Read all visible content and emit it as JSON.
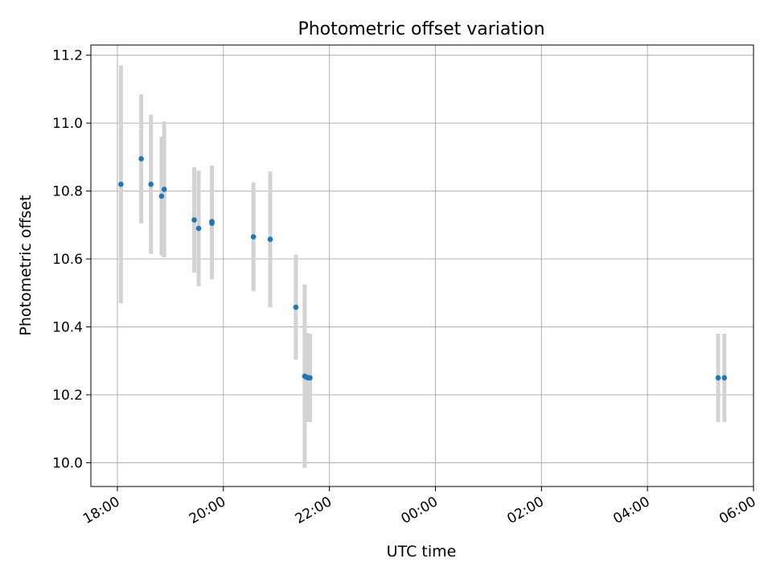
{
  "chart_data": {
    "type": "scatter",
    "title": "Photometric offset variation",
    "xlabel": "UTC time",
    "ylabel": "Photometric offset",
    "x_axis_kind": "time (UTC)",
    "xlim": [
      "2021-01-01T17:30",
      "2021-01-02T06:00"
    ],
    "ylim": [
      9.93,
      11.23
    ],
    "x_ticks": [
      {
        "t": "2021-01-01T18:00",
        "label": "18:00"
      },
      {
        "t": "2021-01-01T20:00",
        "label": "20:00"
      },
      {
        "t": "2021-01-01T22:00",
        "label": "22:00"
      },
      {
        "t": "2021-01-02T00:00",
        "label": "00:00"
      },
      {
        "t": "2021-01-02T02:00",
        "label": "02:00"
      },
      {
        "t": "2021-01-02T04:00",
        "label": "04:00"
      },
      {
        "t": "2021-01-02T06:00",
        "label": "06:00"
      }
    ],
    "y_ticks": [
      {
        "v": 10.0,
        "label": "10.0"
      },
      {
        "v": 10.2,
        "label": "10.2"
      },
      {
        "v": 10.4,
        "label": "10.4"
      },
      {
        "v": 10.6,
        "label": "10.6"
      },
      {
        "v": 10.8,
        "label": "10.8"
      },
      {
        "v": 11.0,
        "label": "11.0"
      },
      {
        "v": 11.2,
        "label": "11.2"
      }
    ],
    "grid": true,
    "legend": "none",
    "colors": {
      "marker": "#1f77b4",
      "errorbar": "#d3d3d3",
      "grid": "#b0b0b0",
      "axes": "#000000"
    },
    "points": [
      {
        "t": "2021-01-01T18:04",
        "y": 10.82,
        "err": 0.35
      },
      {
        "t": "2021-01-01T18:27",
        "y": 10.895,
        "err": 0.19
      },
      {
        "t": "2021-01-01T18:38",
        "y": 10.82,
        "err": 0.205
      },
      {
        "t": "2021-01-01T18:50",
        "y": 10.785,
        "err": 0.175
      },
      {
        "t": "2021-01-01T18:53",
        "y": 10.805,
        "err": 0.2
      },
      {
        "t": "2021-01-01T19:27",
        "y": 10.715,
        "err": 0.155
      },
      {
        "t": "2021-01-01T19:32",
        "y": 10.69,
        "err": 0.17
      },
      {
        "t": "2021-01-01T19:47",
        "y": 10.71,
        "err": 0.165
      },
      {
        "t": "2021-01-01T19:47",
        "y": 10.705,
        "err": 0.165
      },
      {
        "t": "2021-01-01T20:34",
        "y": 10.665,
        "err": 0.16
      },
      {
        "t": "2021-01-01T20:53",
        "y": 10.658,
        "err": 0.2
      },
      {
        "t": "2021-01-01T21:22",
        "y": 10.458,
        "err": 0.155
      },
      {
        "t": "2021-01-01T21:32",
        "y": 10.255,
        "err": 0.27
      },
      {
        "t": "2021-01-01T21:34",
        "y": 10.252,
        "err": 0.13
      },
      {
        "t": "2021-01-01T21:36",
        "y": 10.25,
        "err": 0.13
      },
      {
        "t": "2021-01-01T21:38",
        "y": 10.25,
        "err": 0.13
      },
      {
        "t": "2021-01-02T05:20",
        "y": 10.25,
        "err": 0.13
      },
      {
        "t": "2021-01-02T05:27",
        "y": 10.25,
        "err": 0.13
      }
    ]
  }
}
